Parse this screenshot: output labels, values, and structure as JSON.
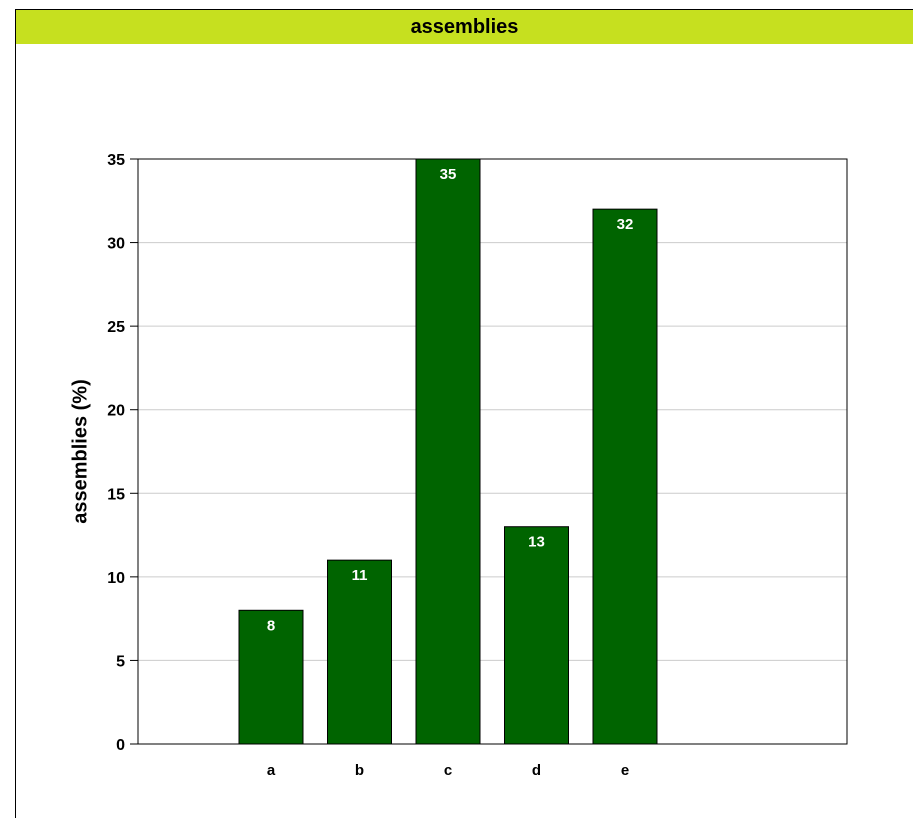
{
  "colors": {
    "title_bar": "#c6e01f",
    "bar_fill": "#006400",
    "grid": "#cccccc"
  },
  "chart_data": {
    "type": "bar",
    "title": "assemblies",
    "categories": [
      "a",
      "b",
      "c",
      "d",
      "e"
    ],
    "values": [
      8,
      11,
      35,
      13,
      32
    ],
    "xlabel": "",
    "ylabel": "assemblies  (%)",
    "ylim": [
      0,
      35
    ],
    "yticks": [
      0,
      5,
      10,
      15,
      20,
      25,
      30,
      35
    ],
    "grid": true,
    "legend": "none",
    "data_labels": true
  }
}
